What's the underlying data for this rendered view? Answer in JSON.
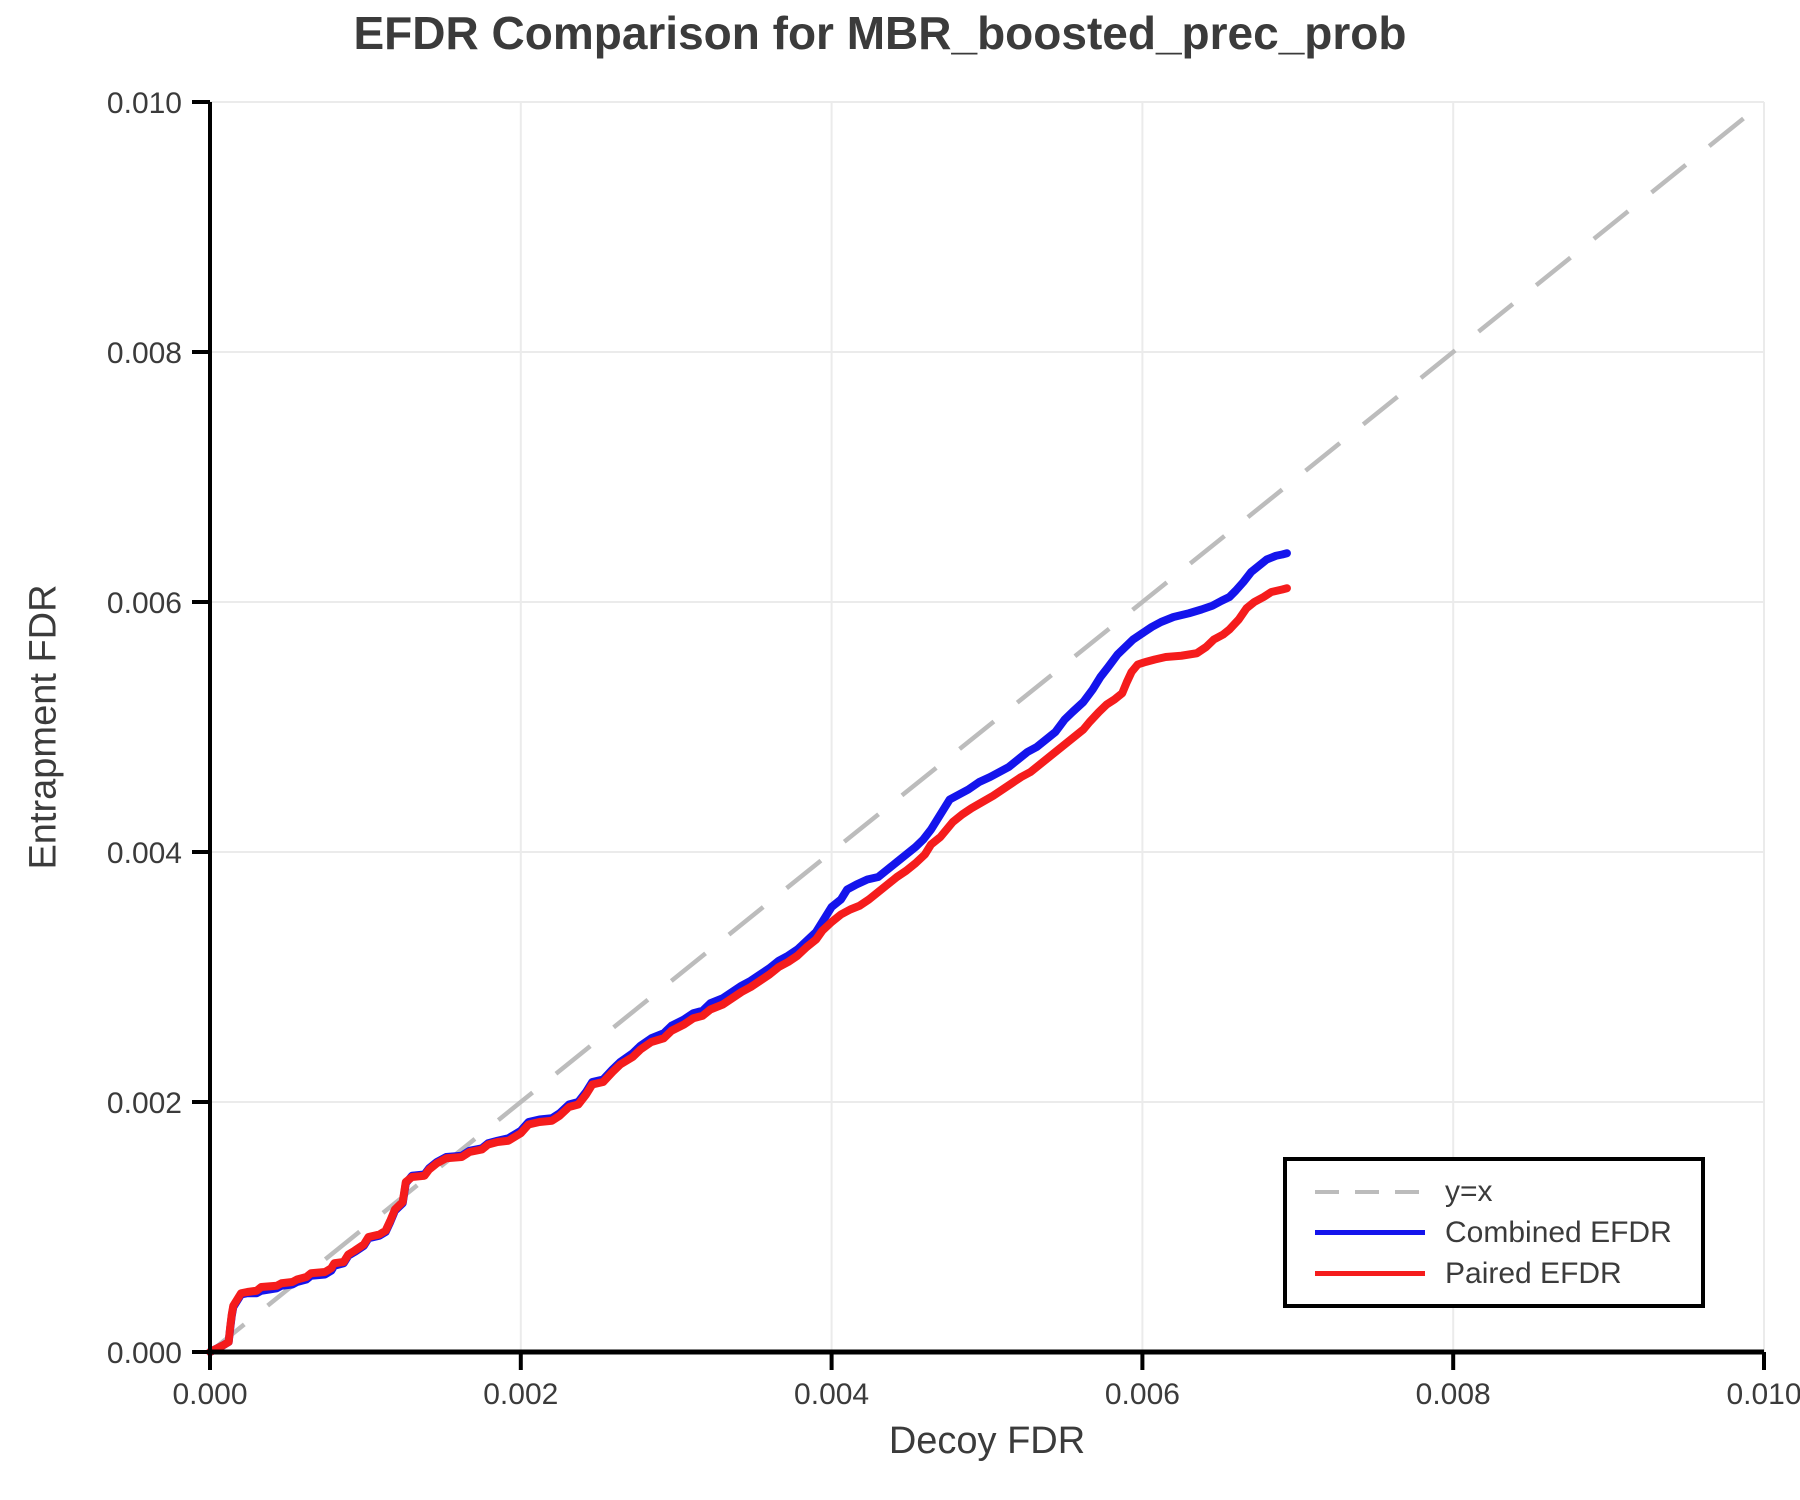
{
  "chart_data": {
    "type": "line",
    "title": "EFDR Comparison for MBR_boosted_prec_prob",
    "xlabel": "Decoy FDR",
    "ylabel": "Entrapment FDR",
    "xlim": [
      0.0,
      0.01
    ],
    "ylim": [
      0.0,
      0.01
    ],
    "grid": true,
    "x_ticks": {
      "values": [
        0.0,
        0.002,
        0.004,
        0.006,
        0.008,
        0.01
      ],
      "labels": [
        "0.000",
        "0.002",
        "0.004",
        "0.006",
        "0.008",
        "0.010"
      ]
    },
    "y_ticks": {
      "values": [
        0.0,
        0.002,
        0.004,
        0.006,
        0.008,
        0.01
      ],
      "labels": [
        "0.000",
        "0.002",
        "0.004",
        "0.006",
        "0.008",
        "0.010"
      ]
    },
    "colors": {
      "grid": "#ebebeb",
      "axis": "#000000",
      "reference": "#bcbcbc",
      "combined": "#1414ec",
      "paired": "#f51c1c",
      "text": "#3b3b3b"
    },
    "reference_line": {
      "label": "y=x",
      "from": [
        0.0,
        0.0
      ],
      "to": [
        0.01,
        0.01
      ],
      "dashed": true
    },
    "legend": {
      "position": "bottom-right",
      "entries": [
        {
          "label": "y=x",
          "color": "#bcbcbc",
          "dashed": true
        },
        {
          "label": "Combined EFDR",
          "color": "#1414ec",
          "dashed": false
        },
        {
          "label": "Paired EFDR",
          "color": "#f51c1c",
          "dashed": false
        }
      ]
    },
    "series": [
      {
        "name": "Combined EFDR",
        "color": "#1414ec",
        "points": [
          [
            0.0,
            0.0
          ],
          [
            8e-05,
            5e-05
          ],
          [
            0.00012,
            8e-05
          ],
          [
            0.00013,
            0.00019
          ],
          [
            0.00014,
            0.00029
          ],
          [
            0.00015,
            0.00036
          ],
          [
            0.00018,
            0.00042
          ],
          [
            0.0002,
            0.00046
          ],
          [
            0.00024,
            0.00047
          ],
          [
            0.0003,
            0.00047
          ],
          [
            0.00033,
            0.00049
          ],
          [
            0.00043,
            0.00051
          ],
          [
            0.00046,
            0.00053
          ],
          [
            0.00053,
            0.00054
          ],
          [
            0.00056,
            0.00056
          ],
          [
            0.00062,
            0.00058
          ],
          [
            0.00065,
            0.00061
          ],
          [
            0.00074,
            0.00062
          ],
          [
            0.00078,
            0.00065
          ],
          [
            0.0008,
            0.00069
          ],
          [
            0.00086,
            0.00071
          ],
          [
            0.00089,
            0.00077
          ],
          [
            0.00093,
            0.0008
          ],
          [
            0.00099,
            0.00085
          ],
          [
            0.00102,
            0.00091
          ],
          [
            0.00109,
            0.00093
          ],
          [
            0.00113,
            0.00096
          ],
          [
            0.00116,
            0.00104
          ],
          [
            0.00119,
            0.00113
          ],
          [
            0.00124,
            0.00119
          ],
          [
            0.00126,
            0.00135
          ],
          [
            0.0013,
            0.00141
          ],
          [
            0.00138,
            0.00142
          ],
          [
            0.00141,
            0.00147
          ],
          [
            0.00146,
            0.00152
          ],
          [
            0.00152,
            0.00156
          ],
          [
            0.00162,
            0.00157
          ],
          [
            0.00167,
            0.00161
          ],
          [
            0.00175,
            0.00163
          ],
          [
            0.00179,
            0.00167
          ],
          [
            0.00185,
            0.00169
          ],
          [
            0.00192,
            0.00171
          ],
          [
            0.00196,
            0.00174
          ],
          [
            0.002,
            0.00177
          ],
          [
            0.00205,
            0.00184
          ],
          [
            0.00212,
            0.00186
          ],
          [
            0.0022,
            0.00187
          ],
          [
            0.00225,
            0.00191
          ],
          [
            0.00231,
            0.00198
          ],
          [
            0.00237,
            0.002
          ],
          [
            0.00242,
            0.00208
          ],
          [
            0.00246,
            0.00216
          ],
          [
            0.00253,
            0.00218
          ],
          [
            0.00259,
            0.00226
          ],
          [
            0.00264,
            0.00232
          ],
          [
            0.00272,
            0.00239
          ],
          [
            0.00277,
            0.00245
          ],
          [
            0.00284,
            0.00251
          ],
          [
            0.00292,
            0.00255
          ],
          [
            0.00297,
            0.00261
          ],
          [
            0.00305,
            0.00266
          ],
          [
            0.00311,
            0.00271
          ],
          [
            0.00317,
            0.00273
          ],
          [
            0.00322,
            0.00279
          ],
          [
            0.0033,
            0.00283
          ],
          [
            0.00336,
            0.00288
          ],
          [
            0.00342,
            0.00293
          ],
          [
            0.00348,
            0.00297
          ],
          [
            0.00354,
            0.00302
          ],
          [
            0.0036,
            0.00307
          ],
          [
            0.00366,
            0.00313
          ],
          [
            0.00372,
            0.00317
          ],
          [
            0.00378,
            0.00322
          ],
          [
            0.00384,
            0.00329
          ],
          [
            0.0039,
            0.00336
          ],
          [
            0.00394,
            0.00344
          ],
          [
            0.00398,
            0.00352
          ],
          [
            0.004,
            0.00356
          ],
          [
            0.00406,
            0.00362
          ],
          [
            0.0041,
            0.0037
          ],
          [
            0.00416,
            0.00374
          ],
          [
            0.00423,
            0.00378
          ],
          [
            0.0043,
            0.0038
          ],
          [
            0.00436,
            0.00386
          ],
          [
            0.00442,
            0.00392
          ],
          [
            0.00448,
            0.00398
          ],
          [
            0.00454,
            0.00404
          ],
          [
            0.00459,
            0.0041
          ],
          [
            0.00464,
            0.00418
          ],
          [
            0.00468,
            0.00426
          ],
          [
            0.00472,
            0.00434
          ],
          [
            0.00476,
            0.00442
          ],
          [
            0.00482,
            0.00446
          ],
          [
            0.00488,
            0.0045
          ],
          [
            0.00495,
            0.00456
          ],
          [
            0.00502,
            0.0046
          ],
          [
            0.00508,
            0.00464
          ],
          [
            0.00514,
            0.00468
          ],
          [
            0.0052,
            0.00474
          ],
          [
            0.00526,
            0.0048
          ],
          [
            0.00532,
            0.00484
          ],
          [
            0.00538,
            0.0049
          ],
          [
            0.00544,
            0.00496
          ],
          [
            0.0055,
            0.00506
          ],
          [
            0.00555,
            0.00512
          ],
          [
            0.00562,
            0.0052
          ],
          [
            0.00568,
            0.0053
          ],
          [
            0.00573,
            0.0054
          ],
          [
            0.00578,
            0.00548
          ],
          [
            0.00584,
            0.00558
          ],
          [
            0.00589,
            0.00564
          ],
          [
            0.00594,
            0.0057
          ],
          [
            0.006,
            0.00575
          ],
          [
            0.00606,
            0.0058
          ],
          [
            0.00612,
            0.00584
          ],
          [
            0.0062,
            0.00588
          ],
          [
            0.0063,
            0.00591
          ],
          [
            0.00638,
            0.00594
          ],
          [
            0.00645,
            0.00597
          ],
          [
            0.00651,
            0.00601
          ],
          [
            0.00656,
            0.00604
          ],
          [
            0.0066,
            0.00609
          ],
          [
            0.00665,
            0.00616
          ],
          [
            0.0067,
            0.00624
          ],
          [
            0.00675,
            0.00629
          ],
          [
            0.0068,
            0.00634
          ],
          [
            0.00686,
            0.00637
          ],
          [
            0.0069,
            0.00638
          ],
          [
            0.00693,
            0.00639
          ]
        ]
      },
      {
        "name": "Paired EFDR",
        "color": "#f51c1c",
        "points": [
          [
            0.0,
            0.0
          ],
          [
            8e-05,
            5e-05
          ],
          [
            0.00012,
            8e-05
          ],
          [
            0.00013,
            0.0002
          ],
          [
            0.00014,
            0.0003
          ],
          [
            0.00015,
            0.00037
          ],
          [
            0.00018,
            0.00043
          ],
          [
            0.0002,
            0.00047
          ],
          [
            0.00024,
            0.00048
          ],
          [
            0.0003,
            0.00049
          ],
          [
            0.00033,
            0.00052
          ],
          [
            0.00043,
            0.00053
          ],
          [
            0.00046,
            0.00055
          ],
          [
            0.00053,
            0.00056
          ],
          [
            0.00056,
            0.00058
          ],
          [
            0.00062,
            0.0006
          ],
          [
            0.00065,
            0.00063
          ],
          [
            0.00074,
            0.00064
          ],
          [
            0.00078,
            0.00067
          ],
          [
            0.0008,
            0.00071
          ],
          [
            0.00086,
            0.00072
          ],
          [
            0.00089,
            0.00078
          ],
          [
            0.00093,
            0.00081
          ],
          [
            0.00099,
            0.00086
          ],
          [
            0.00102,
            0.00092
          ],
          [
            0.00109,
            0.00094
          ],
          [
            0.00113,
            0.00097
          ],
          [
            0.00116,
            0.00105
          ],
          [
            0.00119,
            0.00114
          ],
          [
            0.00124,
            0.0012
          ],
          [
            0.00126,
            0.00136
          ],
          [
            0.0013,
            0.0014
          ],
          [
            0.00138,
            0.00141
          ],
          [
            0.00141,
            0.00146
          ],
          [
            0.00146,
            0.00151
          ],
          [
            0.00152,
            0.00155
          ],
          [
            0.00162,
            0.00156
          ],
          [
            0.00167,
            0.0016
          ],
          [
            0.00175,
            0.00162
          ],
          [
            0.00179,
            0.00166
          ],
          [
            0.00185,
            0.00168
          ],
          [
            0.00192,
            0.00169
          ],
          [
            0.00196,
            0.00172
          ],
          [
            0.002,
            0.00175
          ],
          [
            0.00205,
            0.00182
          ],
          [
            0.00212,
            0.00184
          ],
          [
            0.0022,
            0.00185
          ],
          [
            0.00225,
            0.00189
          ],
          [
            0.00231,
            0.00196
          ],
          [
            0.00237,
            0.00198
          ],
          [
            0.00242,
            0.00206
          ],
          [
            0.00246,
            0.00214
          ],
          [
            0.00253,
            0.00216
          ],
          [
            0.00259,
            0.00224
          ],
          [
            0.00264,
            0.0023
          ],
          [
            0.00272,
            0.00236
          ],
          [
            0.00277,
            0.00242
          ],
          [
            0.00284,
            0.00248
          ],
          [
            0.00292,
            0.00251
          ],
          [
            0.00297,
            0.00257
          ],
          [
            0.00305,
            0.00262
          ],
          [
            0.00311,
            0.00267
          ],
          [
            0.00317,
            0.00269
          ],
          [
            0.00322,
            0.00274
          ],
          [
            0.0033,
            0.00278
          ],
          [
            0.00336,
            0.00283
          ],
          [
            0.00342,
            0.00288
          ],
          [
            0.00348,
            0.00292
          ],
          [
            0.00354,
            0.00297
          ],
          [
            0.0036,
            0.00302
          ],
          [
            0.00366,
            0.00308
          ],
          [
            0.00372,
            0.00312
          ],
          [
            0.00378,
            0.00317
          ],
          [
            0.00384,
            0.00324
          ],
          [
            0.0039,
            0.0033
          ],
          [
            0.00394,
            0.00337
          ],
          [
            0.004,
            0.00344
          ],
          [
            0.00406,
            0.0035
          ],
          [
            0.00412,
            0.00354
          ],
          [
            0.00418,
            0.00357
          ],
          [
            0.00424,
            0.00362
          ],
          [
            0.0043,
            0.00368
          ],
          [
            0.00436,
            0.00374
          ],
          [
            0.00442,
            0.0038
          ],
          [
            0.00448,
            0.00385
          ],
          [
            0.00454,
            0.00391
          ],
          [
            0.0046,
            0.00398
          ],
          [
            0.00464,
            0.00406
          ],
          [
            0.0047,
            0.00412
          ],
          [
            0.00474,
            0.00418
          ],
          [
            0.00478,
            0.00424
          ],
          [
            0.00484,
            0.0043
          ],
          [
            0.0049,
            0.00435
          ],
          [
            0.00497,
            0.0044
          ],
          [
            0.00504,
            0.00445
          ],
          [
            0.0051,
            0.0045
          ],
          [
            0.00516,
            0.00455
          ],
          [
            0.00522,
            0.0046
          ],
          [
            0.00528,
            0.00464
          ],
          [
            0.00534,
            0.0047
          ],
          [
            0.0054,
            0.00476
          ],
          [
            0.00546,
            0.00482
          ],
          [
            0.00552,
            0.00488
          ],
          [
            0.00557,
            0.00493
          ],
          [
            0.00562,
            0.00498
          ],
          [
            0.00566,
            0.00504
          ],
          [
            0.00572,
            0.00512
          ],
          [
            0.00577,
            0.00518
          ],
          [
            0.00582,
            0.00522
          ],
          [
            0.00587,
            0.00527
          ],
          [
            0.0059,
            0.00536
          ],
          [
            0.00593,
            0.00544
          ],
          [
            0.00597,
            0.0055
          ],
          [
            0.00602,
            0.00552
          ],
          [
            0.00608,
            0.00554
          ],
          [
            0.00615,
            0.00556
          ],
          [
            0.00625,
            0.00557
          ],
          [
            0.00635,
            0.00559
          ],
          [
            0.00641,
            0.00564
          ],
          [
            0.00646,
            0.0057
          ],
          [
            0.00652,
            0.00574
          ],
          [
            0.00656,
            0.00578
          ],
          [
            0.00662,
            0.00586
          ],
          [
            0.00667,
            0.00595
          ],
          [
            0.00672,
            0.006
          ],
          [
            0.00678,
            0.00604
          ],
          [
            0.00683,
            0.00608
          ],
          [
            0.0069,
            0.0061
          ],
          [
            0.00693,
            0.00611
          ]
        ]
      }
    ]
  }
}
